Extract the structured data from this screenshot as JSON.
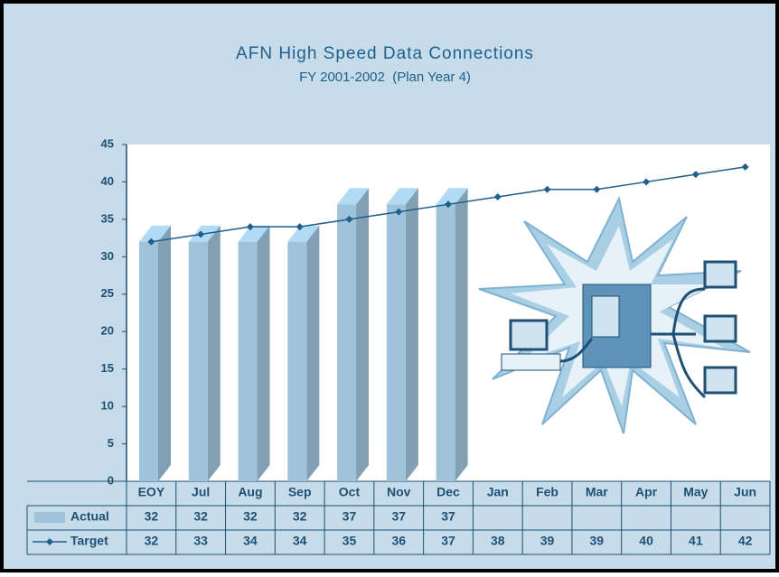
{
  "chart_data": {
    "type": "bar-line-table",
    "title": "AFN High Speed Data Connections",
    "subtitle": "FY 2001-2002  (Plan Year 4)",
    "categories": [
      "EOY",
      "Jul",
      "Aug",
      "Sep",
      "Oct",
      "Nov",
      "Dec",
      "Jan",
      "Feb",
      "Mar",
      "Apr",
      "May",
      "Jun"
    ],
    "series": [
      {
        "name": "Actual",
        "type": "bar",
        "color": "#9ec3da",
        "values": [
          32,
          32,
          32,
          32,
          37,
          37,
          37,
          null,
          null,
          null,
          null,
          null,
          null
        ]
      },
      {
        "name": "Target",
        "type": "line",
        "color": "#1f5f8b",
        "values": [
          32,
          33,
          34,
          34,
          35,
          36,
          37,
          38,
          39,
          39,
          40,
          41,
          42
        ]
      }
    ],
    "ylim": [
      0,
      45
    ],
    "yticks": [
      0,
      5,
      10,
      15,
      20,
      25,
      30,
      35,
      40,
      45
    ]
  }
}
